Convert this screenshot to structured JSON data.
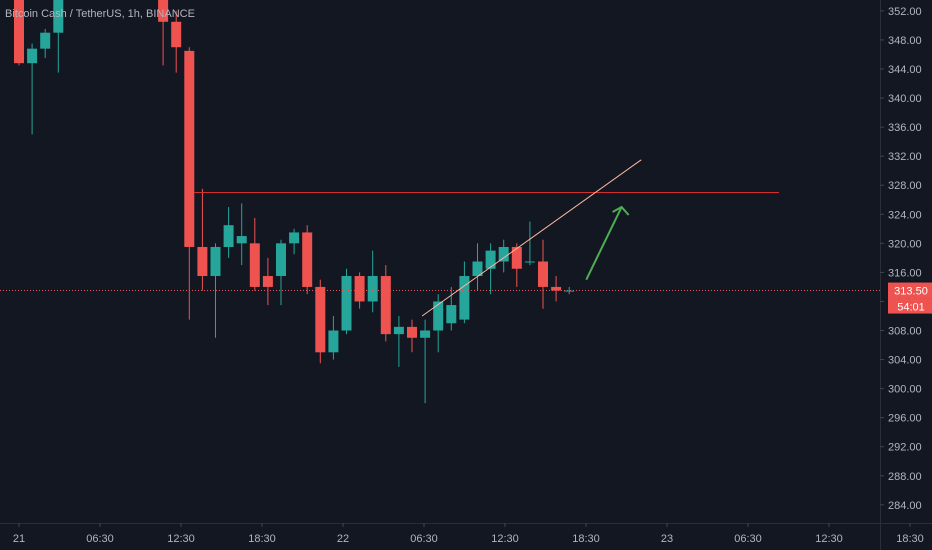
{
  "header": {
    "title": "Bitcoin Cash / TetherUS, 1h, BINANCE"
  },
  "colors": {
    "background": "#131722",
    "up": "#26a69a",
    "down": "#ef5350",
    "axis_text": "#b2b5be",
    "horizontal_line": "#d32f2f",
    "trend_line": "#ffb8a0",
    "arrow": "#4caf50",
    "price_badge": "#ef5350"
  },
  "price_badge": {
    "price": "313.50",
    "countdown": "54:01"
  },
  "chart_data": {
    "type": "candlestick",
    "x_ticks": [
      "21",
      "06:30",
      "12:30",
      "18:30",
      "22",
      "06:30",
      "12:30",
      "18:30",
      "23",
      "06:30",
      "12:30",
      "18:30"
    ],
    "y_ticks": [
      "352.00",
      "348.00",
      "344.00",
      "340.00",
      "336.00",
      "332.00",
      "328.00",
      "324.00",
      "320.00",
      "316.00",
      "312.00",
      "308.00",
      "304.00",
      "300.00",
      "296.00",
      "292.00",
      "288.00",
      "284.00"
    ],
    "ylim": [
      281.5,
      353.5
    ],
    "candles": [
      {
        "i": 0,
        "o": 353.5,
        "h": 353.5,
        "l": 344.5,
        "c": 344.8
      },
      {
        "i": 1,
        "o": 344.8,
        "h": 347.5,
        "l": 335.0,
        "c": 346.8
      },
      {
        "i": 2,
        "o": 346.8,
        "h": 349.5,
        "l": 345.5,
        "c": 349.0
      },
      {
        "i": 3,
        "o": 349.0,
        "h": 353.5,
        "l": 343.5,
        "c": 353.5
      },
      {
        "i": 11,
        "o": 353.5,
        "h": 353.5,
        "l": 344.5,
        "c": 350.5
      },
      {
        "i": 12,
        "o": 350.5,
        "h": 352.0,
        "l": 343.5,
        "c": 347.0
      },
      {
        "i": 13,
        "o": 346.5,
        "h": 347.0,
        "l": 309.5,
        "c": 319.5
      },
      {
        "i": 14,
        "o": 319.5,
        "h": 327.5,
        "l": 313.5,
        "c": 315.5
      },
      {
        "i": 15,
        "o": 315.5,
        "h": 320.0,
        "l": 307.0,
        "c": 319.5
      },
      {
        "i": 16,
        "o": 319.5,
        "h": 325.0,
        "l": 318.0,
        "c": 322.5
      },
      {
        "i": 17,
        "o": 320.0,
        "h": 325.5,
        "l": 317.0,
        "c": 321.0
      },
      {
        "i": 18,
        "o": 320.0,
        "h": 323.5,
        "l": 313.5,
        "c": 314.0
      },
      {
        "i": 19,
        "o": 315.5,
        "h": 318.0,
        "l": 311.5,
        "c": 314.0
      },
      {
        "i": 20,
        "o": 315.5,
        "h": 320.5,
        "l": 311.5,
        "c": 320.0
      },
      {
        "i": 21,
        "o": 320.0,
        "h": 322.0,
        "l": 318.5,
        "c": 321.5
      },
      {
        "i": 22,
        "o": 321.5,
        "h": 322.5,
        "l": 313.0,
        "c": 314.0
      },
      {
        "i": 23,
        "o": 314.0,
        "h": 315.0,
        "l": 303.5,
        "c": 305.0
      },
      {
        "i": 24,
        "o": 305.0,
        "h": 310.0,
        "l": 304.0,
        "c": 308.0
      },
      {
        "i": 25,
        "o": 308.0,
        "h": 316.5,
        "l": 307.5,
        "c": 315.5
      },
      {
        "i": 26,
        "o": 315.5,
        "h": 316.0,
        "l": 311.0,
        "c": 312.0
      },
      {
        "i": 27,
        "o": 312.0,
        "h": 319.0,
        "l": 310.5,
        "c": 315.5
      },
      {
        "i": 28,
        "o": 315.5,
        "h": 317.0,
        "l": 306.5,
        "c": 307.5
      },
      {
        "i": 29,
        "o": 307.5,
        "h": 310.0,
        "l": 303.0,
        "c": 308.5
      },
      {
        "i": 30,
        "o": 308.5,
        "h": 309.5,
        "l": 305.0,
        "c": 307.0
      },
      {
        "i": 31,
        "o": 307.0,
        "h": 309.5,
        "l": 298.0,
        "c": 308.0
      },
      {
        "i": 32,
        "o": 308.0,
        "h": 313.0,
        "l": 305.0,
        "c": 312.0
      },
      {
        "i": 33,
        "o": 309.0,
        "h": 314.0,
        "l": 308.0,
        "c": 311.5
      },
      {
        "i": 34,
        "o": 309.5,
        "h": 317.5,
        "l": 309.0,
        "c": 315.5
      },
      {
        "i": 35,
        "o": 315.5,
        "h": 320.0,
        "l": 313.5,
        "c": 317.5
      },
      {
        "i": 36,
        "o": 316.5,
        "h": 320.0,
        "l": 313.0,
        "c": 319.0
      },
      {
        "i": 37,
        "o": 317.5,
        "h": 320.5,
        "l": 316.0,
        "c": 319.5
      },
      {
        "i": 38,
        "o": 319.5,
        "h": 320.0,
        "l": 314.0,
        "c": 316.5
      },
      {
        "i": 39,
        "o": 317.5,
        "h": 323.0,
        "l": 317.0,
        "c": 317.5
      },
      {
        "i": 40,
        "o": 317.5,
        "h": 320.5,
        "l": 311.0,
        "c": 314.0
      },
      {
        "i": 41,
        "o": 314.0,
        "h": 315.5,
        "l": 312.0,
        "c": 313.5
      },
      {
        "i": 42,
        "o": 313.5,
        "h": 314.0,
        "l": 313.0,
        "c": 313.5
      }
    ],
    "annotations": {
      "horizontal_line_price": 327.0,
      "trend_line": {
        "from": {
          "i": 31,
          "price": 310.0
        },
        "to": {
          "i": 47.5,
          "price": 331.5
        }
      },
      "arrow": {
        "from": {
          "i": 43,
          "price": 315.0
        },
        "to": {
          "i": 46,
          "price": 325.0
        }
      }
    }
  }
}
